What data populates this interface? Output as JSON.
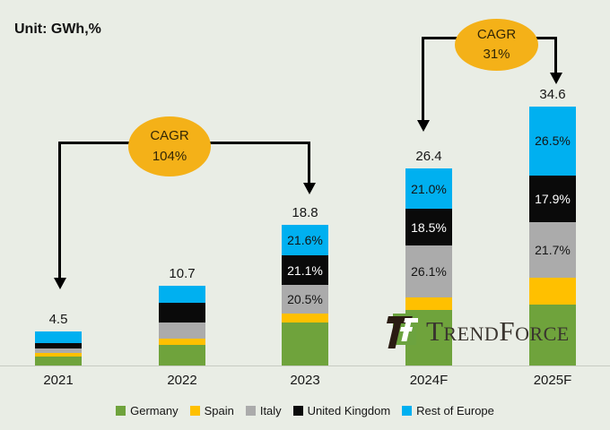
{
  "unit_label": "Unit: GWh,%",
  "chart_data": {
    "type": "bar",
    "stacked": true,
    "title": "",
    "unit": "GWh",
    "categories": [
      "2021",
      "2022",
      "2023",
      "2024F",
      "2025F"
    ],
    "totals": [
      "4.5",
      "10.7",
      "18.8",
      "26.4",
      "34.6"
    ],
    "series": [
      {
        "name": "Germany",
        "color": "#6FA33C",
        "values": [
          1.2,
          2.8,
          5.7,
          7.4,
          8.1
        ]
      },
      {
        "name": "Spain",
        "color": "#FFC000",
        "values": [
          0.45,
          0.85,
          1.2,
          1.7,
          3.6
        ]
      },
      {
        "name": "Italy",
        "color": "#ABABAB",
        "values": [
          0.6,
          2.05,
          3.85,
          6.9,
          7.5
        ]
      },
      {
        "name": "United Kingdom",
        "color": "#0A0A0A",
        "values": [
          0.7,
          2.65,
          3.95,
          4.9,
          6.2
        ]
      },
      {
        "name": "Rest of Europe",
        "color": "#00B0F0",
        "values": [
          1.55,
          2.35,
          4.1,
          5.5,
          9.2
        ]
      }
    ],
    "segment_labels": [
      {
        "category": "2023",
        "series": "Italy",
        "text": "20.5%"
      },
      {
        "category": "2023",
        "series": "United Kingdom",
        "text": "21.1%"
      },
      {
        "category": "2023",
        "series": "Rest of Europe",
        "text": "21.6%"
      },
      {
        "category": "2024F",
        "series": "Italy",
        "text": "26.1%"
      },
      {
        "category": "2024F",
        "series": "United Kingdom",
        "text": "18.5%"
      },
      {
        "category": "2024F",
        "series": "Rest of Europe",
        "text": "21.0%"
      },
      {
        "category": "2025F",
        "series": "Italy",
        "text": "21.7%"
      },
      {
        "category": "2025F",
        "series": "United Kingdom",
        "text": "17.9%"
      },
      {
        "category": "2025F",
        "series": "Rest of Europe",
        "text": "26.5%"
      }
    ],
    "ylim": [
      0,
      36
    ],
    "grid": false,
    "legend_position": "bottom"
  },
  "annotations": {
    "cagr_1": {
      "line1": "CAGR",
      "line2": "104%",
      "color": "#F4B118"
    },
    "cagr_2": {
      "line1": "CAGR",
      "line2": "31%",
      "color": "#F4B118"
    }
  },
  "logo": {
    "text": "TrendForce"
  },
  "colors": {
    "background": "#E9EDE5",
    "axis_line": "#C7CBC2",
    "annotation_line": "#000000"
  }
}
